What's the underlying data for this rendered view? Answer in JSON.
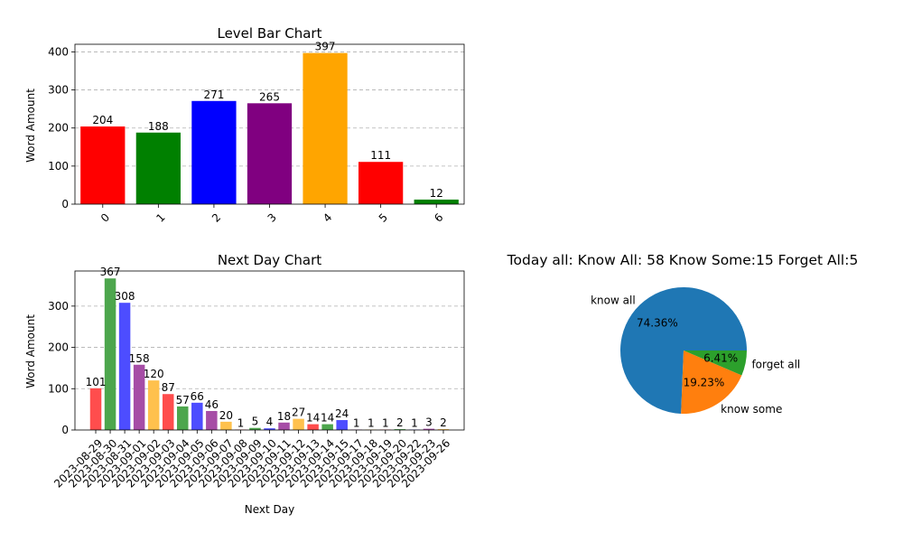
{
  "chart_data": [
    {
      "type": "bar",
      "title": "Level Bar Chart",
      "xlabel": "",
      "ylabel": "Word Amount",
      "categories": [
        "0",
        "1",
        "2",
        "3",
        "4",
        "5",
        "6"
      ],
      "values": [
        204,
        188,
        271,
        265,
        397,
        111,
        12
      ],
      "colors": [
        "#ff0000",
        "#008000",
        "#0000ff",
        "#800080",
        "#ffa500",
        "#ff0000",
        "#008000"
      ],
      "ylim": [
        0,
        420
      ],
      "yticks": [
        0,
        100,
        200,
        300,
        400
      ],
      "grid": "y-dashed"
    },
    {
      "type": "bar",
      "title": "Next Day Chart",
      "xlabel": "Next Day",
      "ylabel": "Word Amount",
      "categories": [
        "2023-08-29",
        "2023-08-30",
        "2023-08-31",
        "2023-09-01",
        "2023-09-02",
        "2023-09-03",
        "2023-09-04",
        "2023-09-05",
        "2023-09-06",
        "2023-09-07",
        "2023-09-08",
        "2023-09-09",
        "2023-09-10",
        "2023-09-11",
        "2023-09-12",
        "2023-09-13",
        "2023-09-14",
        "2023-09-15",
        "2023-09-17",
        "2023-09-18",
        "2023-09-19",
        "2023-09-20",
        "2023-09-22",
        "2023-09-23",
        "2023-09-26"
      ],
      "values": [
        101,
        367,
        308,
        158,
        120,
        87,
        57,
        66,
        46,
        20,
        1,
        5,
        4,
        18,
        27,
        14,
        14,
        24,
        1,
        1,
        1,
        2,
        1,
        3,
        2
      ],
      "colors": [
        "#ff4d4d",
        "#4da64d",
        "#4d4dff",
        "#a64da6",
        "#ffc14d"
      ],
      "ylim": [
        0,
        385
      ],
      "yticks": [
        0,
        100,
        200,
        300
      ],
      "grid": "y-dashed"
    },
    {
      "type": "pie",
      "title": "Today all:  Know All: 58    Know Some:15    Forget All:5",
      "labels": [
        "know all",
        "know some",
        "forget all"
      ],
      "values": [
        58,
        15,
        5
      ],
      "percent_labels": [
        "74.36%",
        "19.23%",
        "6.41%"
      ],
      "colors": [
        "#1f77b4",
        "#ff7f0e",
        "#2ca02c"
      ]
    }
  ]
}
